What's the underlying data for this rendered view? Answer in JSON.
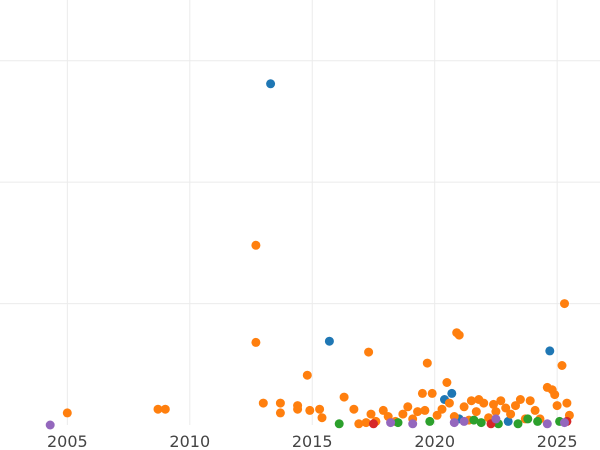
{
  "chart_data": {
    "type": "scatter",
    "title": "",
    "xlabel": "",
    "ylabel": "",
    "xlim": [
      2002.25,
      2026.75
    ],
    "ylim": [
      0,
      3.5
    ],
    "x_ticks": [
      2005,
      2010,
      2015,
      2020,
      2025
    ],
    "x_tick_labels": [
      "2005",
      "2010",
      "2015",
      "2020",
      "2025"
    ],
    "y_gridlines": [
      1,
      2,
      3
    ],
    "grid": true,
    "legend": "none",
    "series": [
      {
        "color": "#1f77b4",
        "points": [
          [
            2013.3,
            2.81
          ],
          [
            2015.7,
            0.69
          ],
          [
            2020.4,
            0.21
          ],
          [
            2020.7,
            0.26
          ],
          [
            2024.7,
            0.61
          ],
          [
            2021.0,
            0.05
          ],
          [
            2023.0,
            0.03
          ]
        ]
      },
      {
        "color": "#ff7f0e",
        "points": [
          [
            2005.0,
            0.1
          ],
          [
            2008.7,
            0.13
          ],
          [
            2009.0,
            0.13
          ],
          [
            2012.7,
            1.48
          ],
          [
            2012.7,
            0.68
          ],
          [
            2013.0,
            0.18
          ],
          [
            2013.7,
            0.18
          ],
          [
            2013.7,
            0.1
          ],
          [
            2014.4,
            0.16
          ],
          [
            2014.4,
            0.13
          ],
          [
            2014.8,
            0.41
          ],
          [
            2014.9,
            0.12
          ],
          [
            2015.3,
            0.13
          ],
          [
            2015.4,
            0.06
          ],
          [
            2016.3,
            0.23
          ],
          [
            2016.7,
            0.13
          ],
          [
            2016.9,
            0.01
          ],
          [
            2017.2,
            0.02
          ],
          [
            2017.3,
            0.6
          ],
          [
            2017.4,
            0.09
          ],
          [
            2017.6,
            0.03
          ],
          [
            2017.9,
            0.12
          ],
          [
            2018.1,
            0.07
          ],
          [
            2018.4,
            0.03
          ],
          [
            2018.7,
            0.09
          ],
          [
            2018.9,
            0.15
          ],
          [
            2019.1,
            0.05
          ],
          [
            2019.3,
            0.11
          ],
          [
            2019.5,
            0.26
          ],
          [
            2019.6,
            0.12
          ],
          [
            2019.7,
            0.51
          ],
          [
            2019.9,
            0.26
          ],
          [
            2020.1,
            0.08
          ],
          [
            2020.3,
            0.13
          ],
          [
            2020.5,
            0.35
          ],
          [
            2020.6,
            0.18
          ],
          [
            2020.8,
            0.07
          ],
          [
            2020.9,
            0.76
          ],
          [
            2021.0,
            0.74
          ],
          [
            2021.2,
            0.15
          ],
          [
            2021.4,
            0.04
          ],
          [
            2021.5,
            0.2
          ],
          [
            2021.7,
            0.11
          ],
          [
            2021.8,
            0.21
          ],
          [
            2022.0,
            0.18
          ],
          [
            2022.2,
            0.06
          ],
          [
            2022.4,
            0.17
          ],
          [
            2022.5,
            0.11
          ],
          [
            2022.7,
            0.2
          ],
          [
            2022.9,
            0.14
          ],
          [
            2023.1,
            0.09
          ],
          [
            2023.3,
            0.16
          ],
          [
            2023.5,
            0.21
          ],
          [
            2023.7,
            0.05
          ],
          [
            2023.9,
            0.2
          ],
          [
            2024.1,
            0.12
          ],
          [
            2024.3,
            0.05
          ],
          [
            2024.6,
            0.31
          ],
          [
            2024.8,
            0.29
          ],
          [
            2024.9,
            0.25
          ],
          [
            2025.0,
            0.16
          ],
          [
            2025.2,
            0.49
          ],
          [
            2025.3,
            1.0
          ],
          [
            2025.4,
            0.18
          ],
          [
            2025.5,
            0.08
          ]
        ]
      },
      {
        "color": "#2ca02c",
        "points": [
          [
            2016.1,
            0.01
          ],
          [
            2018.5,
            0.02
          ],
          [
            2019.8,
            0.03
          ],
          [
            2021.6,
            0.04
          ],
          [
            2021.9,
            0.02
          ],
          [
            2022.6,
            0.01
          ],
          [
            2023.4,
            0.01
          ],
          [
            2023.8,
            0.05
          ],
          [
            2024.2,
            0.03
          ],
          [
            2025.1,
            0.03
          ]
        ]
      },
      {
        "color": "#d62728",
        "points": [
          [
            2017.5,
            0.01
          ],
          [
            2022.3,
            0.01
          ],
          [
            2025.4,
            0.03
          ]
        ]
      },
      {
        "color": "#9467bd",
        "points": [
          [
            2004.3,
            0.0
          ],
          [
            2018.2,
            0.02
          ],
          [
            2019.1,
            0.01
          ],
          [
            2020.8,
            0.02
          ],
          [
            2021.2,
            0.03
          ],
          [
            2022.5,
            0.05
          ],
          [
            2024.6,
            0.01
          ],
          [
            2025.3,
            0.02
          ]
        ]
      }
    ]
  }
}
